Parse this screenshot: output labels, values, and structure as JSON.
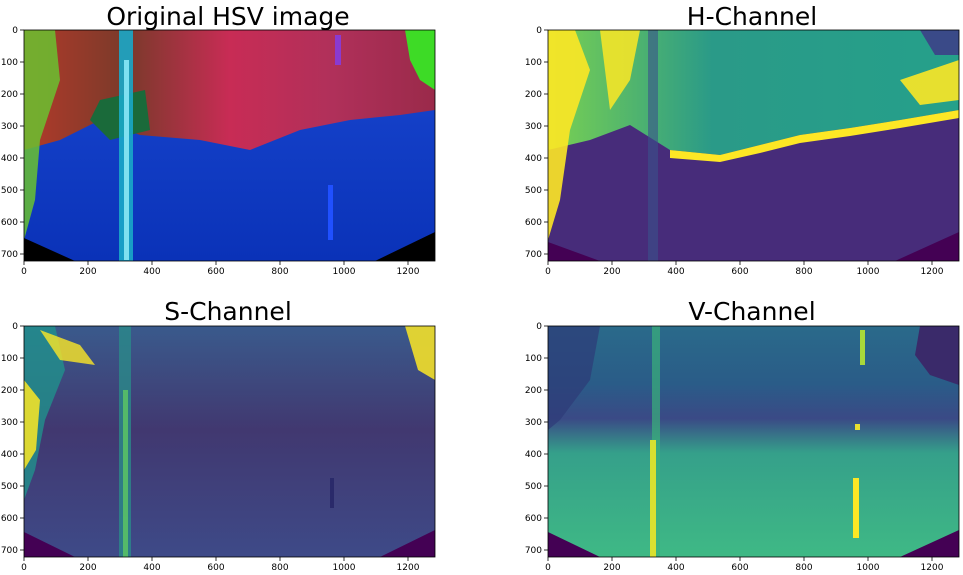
{
  "panels": [
    {
      "title": "Original HSV image",
      "colormap": "hsv-rgb",
      "xticks": [
        "0",
        "200",
        "400",
        "600",
        "800",
        "1000",
        "1200"
      ],
      "yticks": [
        "0",
        "100",
        "200",
        "300",
        "400",
        "500",
        "600",
        "700"
      ]
    },
    {
      "title": "H-Channel",
      "colormap": "viridis",
      "xticks": [
        "0",
        "200",
        "400",
        "600",
        "800",
        "1000",
        "1200"
      ],
      "yticks": [
        "0",
        "100",
        "200",
        "300",
        "400",
        "500",
        "600",
        "700"
      ]
    },
    {
      "title": "S-Channel",
      "colormap": "viridis",
      "xticks": [
        "0",
        "200",
        "400",
        "600",
        "800",
        "1000",
        "1200"
      ],
      "yticks": [
        "0",
        "100",
        "200",
        "300",
        "400",
        "500",
        "600",
        "700"
      ]
    },
    {
      "title": "V-Channel",
      "colormap": "viridis",
      "xticks": [
        "0",
        "200",
        "400",
        "600",
        "800",
        "1000",
        "1200"
      ],
      "yticks": [
        "0",
        "100",
        "200",
        "300",
        "400",
        "500",
        "600",
        "700"
      ]
    }
  ],
  "colors": {
    "viridis_dark": "#440154",
    "viridis_mid": "#3b528b",
    "viridis_teal": "#21918c",
    "viridis_green": "#5ec962",
    "viridis_yellow": "#fde725",
    "hsv_blue": "#0a32d2",
    "hsv_red": "#c02a4a",
    "hsv_green": "#33ee22"
  }
}
